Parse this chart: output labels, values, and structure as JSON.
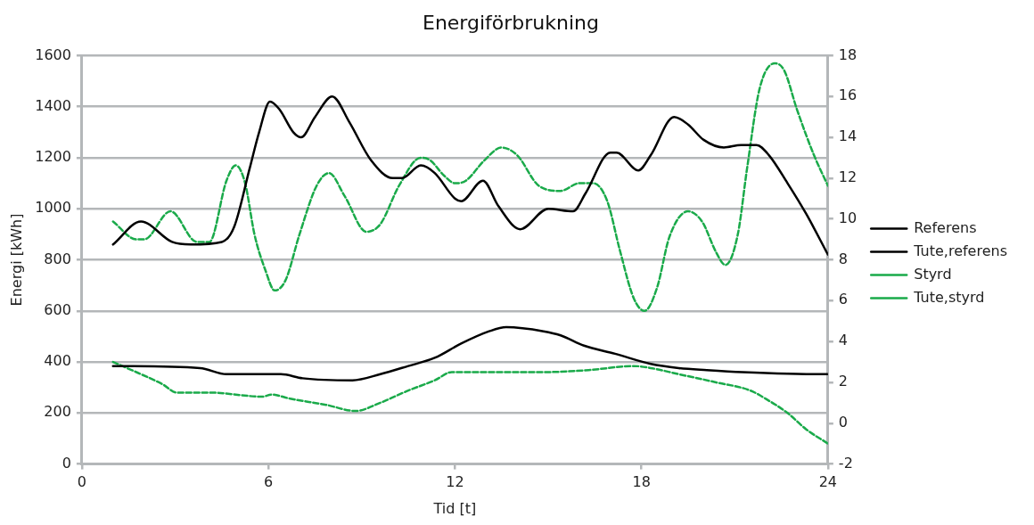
{
  "chart_data": {
    "type": "line",
    "title": "Energiförbrukning",
    "xlabel": "Tid [t]",
    "ylabel": "Energi [kWh]",
    "xlim": [
      0,
      24
    ],
    "xticks": [
      0,
      6,
      12,
      18,
      24
    ],
    "ylim": [
      0,
      1600
    ],
    "yticks": [
      0,
      200,
      400,
      600,
      800,
      1000,
      1200,
      1400,
      1600
    ],
    "y2lim": [
      -2,
      18
    ],
    "y2ticks": [
      -2,
      0,
      2,
      4,
      6,
      8,
      10,
      12,
      14,
      16,
      18
    ],
    "grid": "y",
    "legend": "right",
    "marker": "none",
    "series": [
      {
        "name": "Referens",
        "color": "#000000",
        "line_style": "solid",
        "x": [
          1,
          1.9,
          2.9,
          3.5,
          4.5,
          4.9,
          5.4,
          5.7,
          6.05,
          6.35,
          6.8,
          7.05,
          7.5,
          8.05,
          8.6,
          9.3,
          10,
          10.3,
          10.9,
          11.35,
          12,
          12.2,
          12.9,
          13.4,
          14.1,
          15,
          15.8,
          16.2,
          17,
          17.2,
          17.9,
          18.3,
          19.05,
          19.5,
          20,
          20.65,
          21.2,
          21.7,
          22.1,
          22.7,
          23.3,
          24
        ],
        "values": [
          860,
          950,
          870,
          860,
          870,
          930,
          1160,
          1300,
          1420,
          1390,
          1300,
          1280,
          1360,
          1440,
          1340,
          1190,
          1120,
          1120,
          1170,
          1140,
          1040,
          1030,
          1110,
          1010,
          920,
          1000,
          990,
          1060,
          1220,
          1220,
          1150,
          1210,
          1360,
          1330,
          1270,
          1240,
          1250,
          1250,
          1210,
          1100,
          980,
          820
        ]
      },
      {
        "name": "Tute,referens",
        "color": "#000000",
        "line_style": "solid",
        "axis": "y2",
        "x": [
          1,
          3.8,
          4.65,
          6.4,
          7.1,
          8.7,
          9.6,
          10.5,
          11.35,
          12.2,
          13.1,
          13.65,
          14.85,
          15.4,
          16.15,
          17.15,
          18.3,
          19.2,
          20.1,
          21.25,
          23.85,
          24
        ],
        "values": [
          2.8,
          2.7,
          2.4,
          2.4,
          2.2,
          2.1,
          2.4,
          2.8,
          3.2,
          3.9,
          4.5,
          4.7,
          4.5,
          4.3,
          3.8,
          3.4,
          2.9,
          2.7,
          2.6,
          2.5,
          2.4,
          2.4
        ]
      },
      {
        "name": "Styrd",
        "color": "#1aaa4a",
        "line_style": "dashed",
        "x": [
          1,
          1.75,
          2,
          2.85,
          3.7,
          4.1,
          4.65,
          4.95,
          5.25,
          5.55,
          5.9,
          6.2,
          6.55,
          7,
          7.55,
          7.95,
          8.45,
          9.15,
          9.6,
          10.2,
          10.9,
          11.2,
          11.65,
          12,
          12.35,
          12.95,
          13.5,
          14,
          14.7,
          15.4,
          16,
          16.45,
          16.9,
          17.3,
          17.75,
          18.1,
          18.5,
          18.9,
          19.5,
          19.95,
          20.4,
          20.7,
          21.1,
          21.4,
          21.8,
          22.3,
          22.6,
          23,
          23.55,
          24
        ],
        "values": [
          950,
          880,
          880,
          990,
          870,
          870,
          1110,
          1170,
          1100,
          900,
          760,
          680,
          720,
          900,
          1090,
          1140,
          1050,
          910,
          940,
          1090,
          1200,
          1190,
          1130,
          1100,
          1110,
          1190,
          1240,
          1210,
          1090,
          1070,
          1100,
          1100,
          1030,
          840,
          650,
          600,
          690,
          890,
          990,
          950,
          830,
          780,
          900,
          1160,
          1470,
          1570,
          1540,
          1390,
          1210,
          1090
        ]
      },
      {
        "name": "Tute,styrd",
        "color": "#1aaa4a",
        "line_style": "dashed",
        "axis": "y2",
        "x": [
          1,
          1.45,
          2.6,
          3.05,
          4.1,
          5.8,
          6.1,
          6.7,
          7.85,
          8.8,
          9.6,
          10.5,
          11.35,
          11.9,
          13.1,
          14.85,
          16.3,
          17.75,
          18.3,
          19.2,
          20.4,
          21.5,
          22.1,
          22.7,
          23.3,
          24
        ],
        "values": [
          3,
          2.7,
          1.9,
          1.5,
          1.5,
          1.3,
          1.4,
          1.2,
          0.9,
          0.6,
          1,
          1.6,
          2.1,
          2.5,
          2.5,
          2.5,
          2.6,
          2.8,
          2.7,
          2.4,
          2,
          1.6,
          1.1,
          0.5,
          -0.3,
          -1
        ]
      }
    ]
  }
}
